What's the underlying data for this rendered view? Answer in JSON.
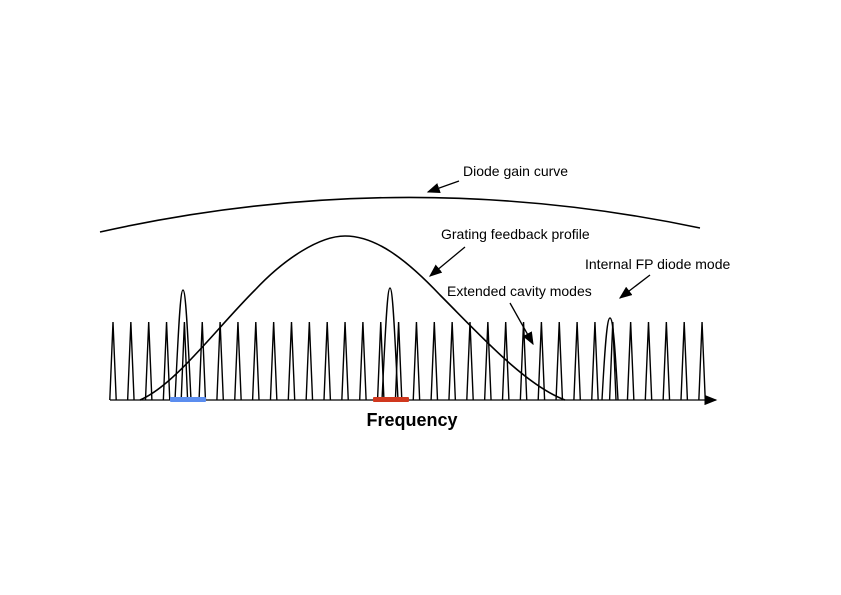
{
  "labels": {
    "gain_curve": "Diode gain curve",
    "grating_profile": "Grating feedback profile",
    "fp_mode": "Internal FP diode mode",
    "cavity_modes": "Extended cavity modes",
    "x_axis": "Frequency"
  },
  "colors": {
    "line": "#000000",
    "marker_left": "#5b8def",
    "marker_center": "#d0381e"
  }
}
